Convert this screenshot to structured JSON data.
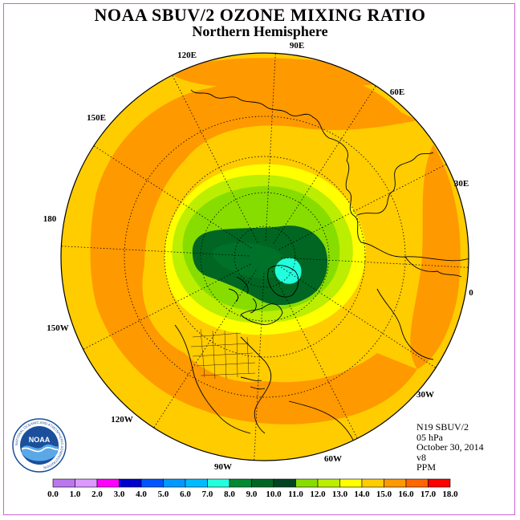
{
  "header": {
    "title": "NOAA SBUV/2 OZONE MIXING RATIO",
    "subtitle": "Northern Hemisphere"
  },
  "map": {
    "projection": "north-polar-stereographic",
    "longitude_labels": [
      "90E",
      "60E",
      "30E",
      "0",
      "30W",
      "60W",
      "90W",
      "120W",
      "150W",
      "180",
      "150E",
      "120E"
    ]
  },
  "info": {
    "satellite": "N19 SBUV/2",
    "level": "05 hPa",
    "date": "October 30, 2014",
    "version": "v8",
    "units": "PPM"
  },
  "logo": {
    "text": "NOAA",
    "ring_text": "NATIONAL OCEANIC AND ATMOSPHERIC ADMINISTRATION"
  },
  "colorbar": {
    "labels": [
      "0.0",
      "1.0",
      "2.0",
      "3.0",
      "4.0",
      "5.0",
      "6.0",
      "7.0",
      "8.0",
      "9.0",
      "10.0",
      "11.0",
      "12.0",
      "13.0",
      "14.0",
      "15.0",
      "16.0",
      "17.0",
      "18.0"
    ],
    "colors": [
      "#bb77ee",
      "#dd99ff",
      "#ff00ff",
      "#0000cc",
      "#0055ff",
      "#0099ff",
      "#00bbff",
      "#22ffdd",
      "#008833",
      "#006622",
      "#004422",
      "#88dd00",
      "#bbee00",
      "#ffff00",
      "#ffcc00",
      "#ff9900",
      "#ff6600",
      "#ff0000",
      "#aa6633"
    ]
  }
}
